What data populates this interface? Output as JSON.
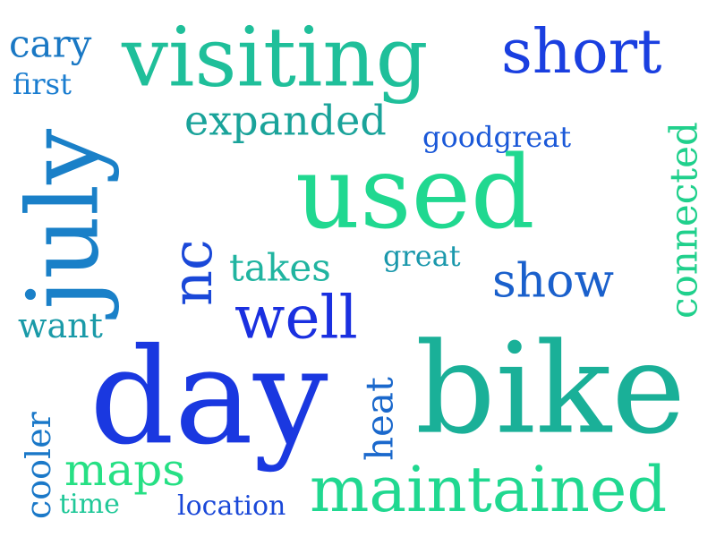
{
  "word_cloud": {
    "words": [
      {
        "id": "visiting",
        "text": "visiting",
        "color": "#1fbf9a",
        "rotated": false
      },
      {
        "id": "short",
        "text": "short",
        "color": "#1a3fe0",
        "rotated": false
      },
      {
        "id": "cary",
        "text": "cary",
        "color": "#1a78c4",
        "rotated": false
      },
      {
        "id": "first",
        "text": "first",
        "color": "#1a7dd0",
        "rotated": false
      },
      {
        "id": "expanded",
        "text": "expanded",
        "color": "#1aa39a",
        "rotated": false
      },
      {
        "id": "goodgreat",
        "text": "goodgreat",
        "color": "#1a58d8",
        "rotated": false
      },
      {
        "id": "connected",
        "text": "connected",
        "color": "#20d08c",
        "rotated": true
      },
      {
        "id": "used",
        "text": "used",
        "color": "#20d890",
        "rotated": false
      },
      {
        "id": "july",
        "text": "july",
        "color": "#1a80c8",
        "rotated": true
      },
      {
        "id": "nc",
        "text": "nc",
        "color": "#1a48d8",
        "rotated": true
      },
      {
        "id": "takes",
        "text": "takes",
        "color": "#20b4a0",
        "rotated": false
      },
      {
        "id": "great",
        "text": "great",
        "color": "#1a98ac",
        "rotated": false
      },
      {
        "id": "show",
        "text": "show",
        "color": "#1a60cc",
        "rotated": false
      },
      {
        "id": "want",
        "text": "want",
        "color": "#1a9aa8",
        "rotated": false
      },
      {
        "id": "well",
        "text": "well",
        "color": "#1a30e0",
        "rotated": false
      },
      {
        "id": "day",
        "text": "day",
        "color": "#1a38e0",
        "rotated": false
      },
      {
        "id": "bike",
        "text": "bike",
        "color": "#1ab098",
        "rotated": false
      },
      {
        "id": "heat",
        "text": "heat",
        "color": "#1a68cc",
        "rotated": true
      },
      {
        "id": "cooler",
        "text": "cooler",
        "color": "#1a78c8",
        "rotated": true
      },
      {
        "id": "maps",
        "text": "maps",
        "color": "#26e084",
        "rotated": false
      },
      {
        "id": "time",
        "text": "time",
        "color": "#20c898",
        "rotated": false
      },
      {
        "id": "location",
        "text": "location",
        "color": "#1a48d8",
        "rotated": false
      },
      {
        "id": "maintained",
        "text": "maintained",
        "color": "#20d890",
        "rotated": false
      }
    ]
  }
}
